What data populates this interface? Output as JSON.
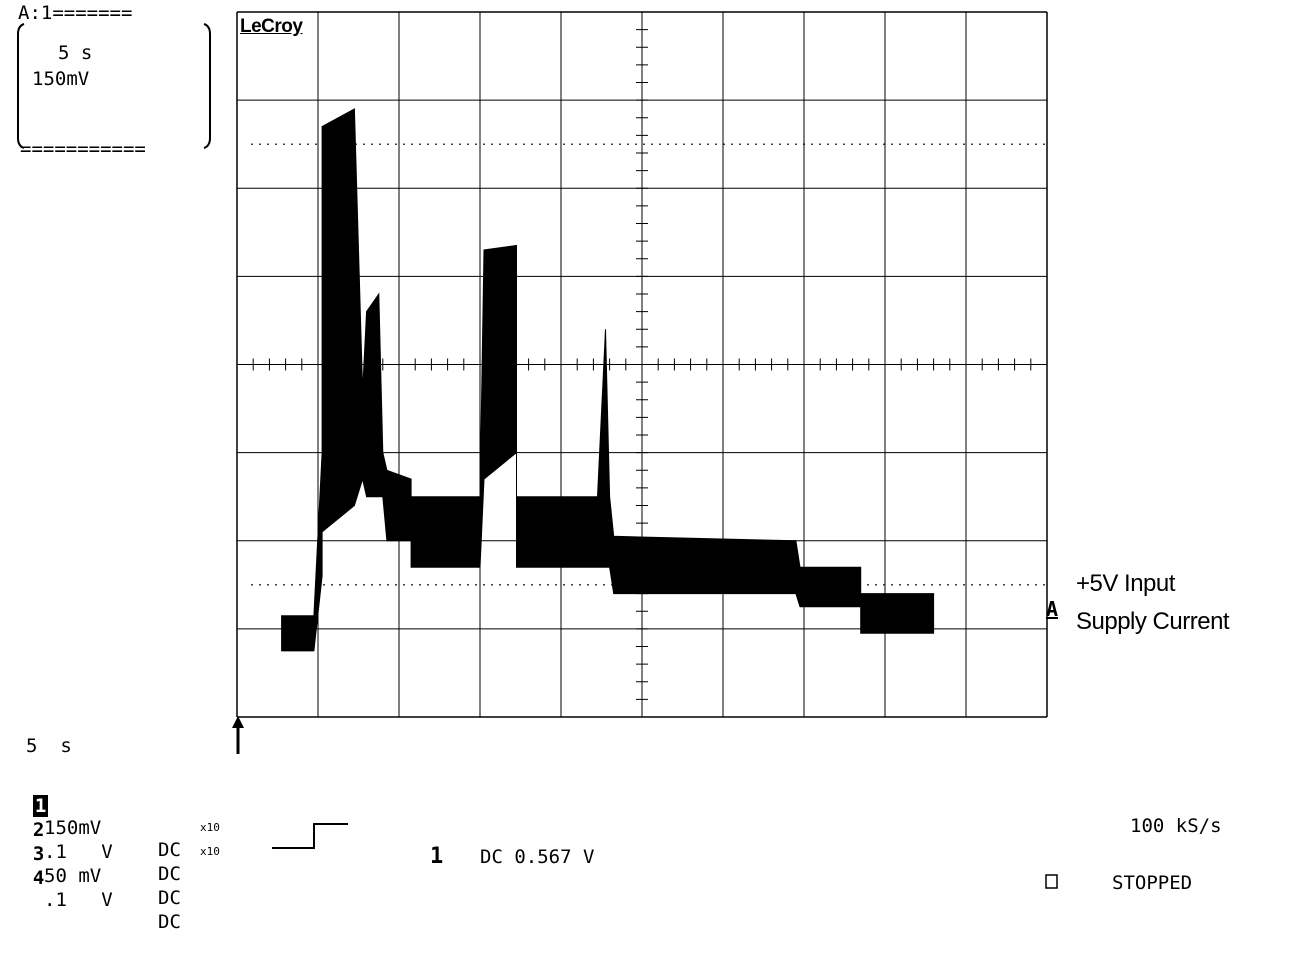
{
  "trace_box": {
    "header": "A:1=======",
    "timebase": "5 s",
    "volts": "150mV",
    "footer": "==========="
  },
  "brand": "LeCroy",
  "trace_label": {
    "line1": "+5V Input",
    "marker": "A",
    "line2": "Supply Current"
  },
  "status": {
    "timebase": "5  s",
    "channels": [
      {
        "num": "1",
        "scale": "150mV",
        "coupling": "DC",
        "probe": ""
      },
      {
        "num": "2",
        "scale": ".1   V",
        "coupling": "DC",
        "probe": ""
      },
      {
        "num": "3",
        "scale": "50 mV",
        "coupling": "DC",
        "probe": "x10"
      },
      {
        "num": "4",
        "scale": ".1   V",
        "coupling": "DC",
        "probe": "x10"
      }
    ],
    "trigger_channel": "1",
    "trigger_text": "DC 0.567 V",
    "sample_rate": "100 kS/s",
    "acq_state": "STOPPED"
  },
  "chart_data": {
    "type": "line",
    "title": "",
    "xlabel": "",
    "ylabel": "",
    "grid": true,
    "divisions": {
      "x": 10,
      "y": 8
    },
    "xlim": [
      0,
      10
    ],
    "ylim": [
      -4,
      4
    ],
    "series": [
      {
        "name": "A",
        "envelope": [
          {
            "x": 0.55,
            "lo": -3.25,
            "hi": -2.85
          },
          {
            "x": 0.95,
            "lo": -3.25,
            "hi": -2.85
          },
          {
            "x": 1.05,
            "lo": -2.4,
            "hi": -1.0
          },
          {
            "x": 1.05,
            "lo": -1.9,
            "hi": 2.7
          },
          {
            "x": 1.45,
            "lo": -1.6,
            "hi": 2.9
          },
          {
            "x": 1.55,
            "lo": -1.3,
            "hi": -0.3
          },
          {
            "x": 1.6,
            "lo": -1.5,
            "hi": 0.6
          },
          {
            "x": 1.75,
            "lo": -1.5,
            "hi": 0.8
          },
          {
            "x": 1.8,
            "lo": -1.5,
            "hi": -1.0
          },
          {
            "x": 1.85,
            "lo": -2.0,
            "hi": -1.2
          },
          {
            "x": 2.15,
            "lo": -2.0,
            "hi": -1.3
          },
          {
            "x": 2.15,
            "lo": -2.3,
            "hi": -1.5
          },
          {
            "x": 3.0,
            "lo": -2.3,
            "hi": -1.5
          },
          {
            "x": 3.05,
            "lo": -1.3,
            "hi": 1.3
          },
          {
            "x": 3.45,
            "lo": -1.0,
            "hi": 1.35
          },
          {
            "x": 3.45,
            "lo": -2.3,
            "hi": -1.5
          },
          {
            "x": 4.45,
            "lo": -2.3,
            "hi": -1.5
          },
          {
            "x": 4.55,
            "lo": -2.3,
            "hi": 0.4
          },
          {
            "x": 4.6,
            "lo": -2.3,
            "hi": -1.5
          },
          {
            "x": 4.65,
            "lo": -2.6,
            "hi": -1.95
          },
          {
            "x": 6.9,
            "lo": -2.6,
            "hi": -2.0
          },
          {
            "x": 6.95,
            "lo": -2.75,
            "hi": -2.3
          },
          {
            "x": 7.7,
            "lo": -2.75,
            "hi": -2.3
          },
          {
            "x": 7.7,
            "lo": -3.05,
            "hi": -2.6
          },
          {
            "x": 8.6,
            "lo": -3.05,
            "hi": -2.6
          }
        ]
      }
    ]
  }
}
